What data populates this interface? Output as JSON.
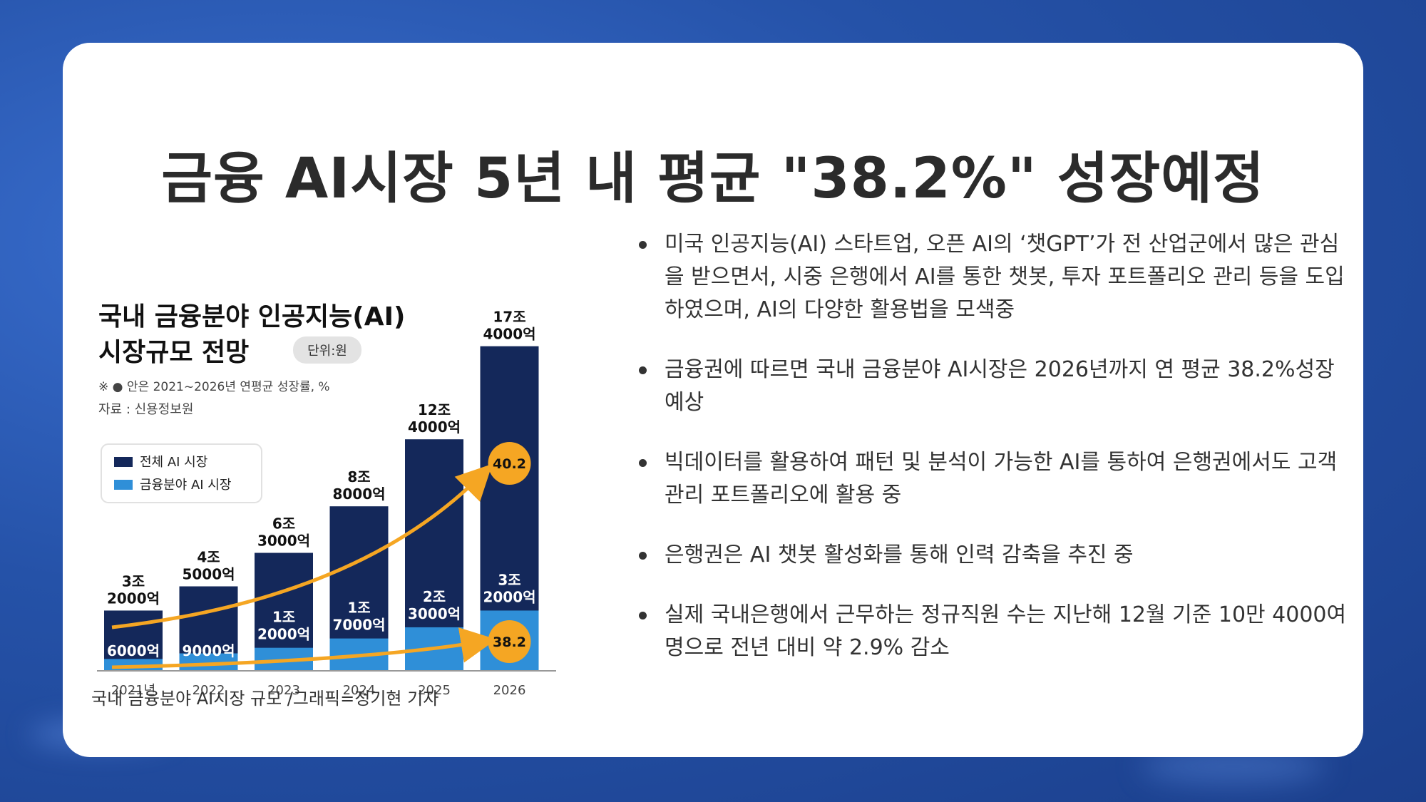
{
  "slide": {
    "title": "금융 AI시장 5년 내 평균 \"38.2%\" 성장예정",
    "caption": "국내 금융분야 AI시장 규모 /그래픽=정기현 기자",
    "bullets": [
      "미국 인공지능(AI) 스타트업, 오픈 AI의 ‘챗GPT’가 전 산업군에서 많은 관심을 받으면서, 시중 은행에서 AI를 통한 챗봇, 투자 포트폴리오 관리 등을 도입하였으며, AI의 다양한 활용법을 모색중",
      "금융권에 따르면 국내 금융분야 AI시장은 2026년까지 연 평균 38.2%성장 예상",
      "빅데이터를 활용하여 패턴 및 분석이 가능한 AI를 통하여 은행권에서도 고객 관리 포트폴리오에 활용 중",
      "은행권은 AI 챗봇 활성화를 통해 인력 감축을 추진 중",
      "실제 국내은행에서 근무하는 정규직원 수는 지난해 12월 기준 10만 4000여명으로 전년 대비 약 2.9% 감소"
    ]
  },
  "chart_data": {
    "type": "bar",
    "title_line1": "국내 금융분야 인공지능(AI)",
    "title_line2": "시장규모 전망",
    "unit_badge": "단위:원",
    "note": "※ ● 안은 2021~2026년 연평균 성장률, %",
    "source": "자료 : 신용정보원",
    "categories": [
      "2021년",
      "2022",
      "2023",
      "2024",
      "2025",
      "2026"
    ],
    "series": [
      {
        "name": "전체 AI 시장",
        "color": "#14285a",
        "values": [
          32000,
          45000,
          63000,
          88000,
          124000,
          174000
        ],
        "labels": [
          [
            "3조",
            "2000억"
          ],
          [
            "4조",
            "5000억"
          ],
          [
            "6조",
            "3000억"
          ],
          [
            "8조",
            "8000억"
          ],
          [
            "12조",
            "4000억"
          ],
          [
            "17조",
            "4000억"
          ]
        ]
      },
      {
        "name": "금융분야 AI 시장",
        "color": "#2f8fd8",
        "values": [
          6000,
          9000,
          12000,
          17000,
          23000,
          32000
        ],
        "labels": [
          [
            "6000억"
          ],
          [
            "9000억"
          ],
          [
            "1조",
            "2000억"
          ],
          [
            "1조",
            "7000억"
          ],
          [
            "2조",
            "3000억"
          ],
          [
            "3조",
            "2000억"
          ]
        ]
      }
    ],
    "growth_rates": [
      {
        "series": "전체 AI 시장",
        "label": "40.2"
      },
      {
        "series": "금융분야 AI 시장",
        "label": "38.2"
      }
    ],
    "ylim": [
      0,
      180000
    ],
    "legend_position": "top-left",
    "growth_color": "#f5a623"
  }
}
